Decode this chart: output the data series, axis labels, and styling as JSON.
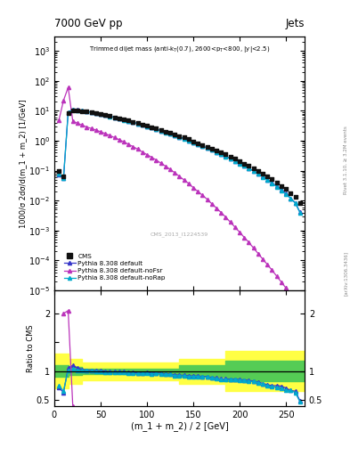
{
  "title_top": "7000 GeV pp",
  "title_right": "Jets",
  "ylabel_main": "1000/σ 2dσ/d(m_1 + m_2) [1/GeV]",
  "ylabel_ratio": "Ratio to CMS",
  "xlabel": "(m_1 + m_2) / 2 [GeV]",
  "cms_label": "CMS_2013_I1224539",
  "rivet_label": "Rivet 3.1.10, ≥ 3.2M events",
  "arxiv_label": "[arXiv:1306.3436]",
  "xlim": [
    0,
    270
  ],
  "ylim_main": [
    1e-05,
    3000.0
  ],
  "ylim_ratio": [
    0.4,
    2.4
  ],
  "cms_x": [
    5,
    10,
    15,
    20,
    25,
    30,
    35,
    40,
    45,
    50,
    55,
    60,
    65,
    70,
    75,
    80,
    85,
    90,
    95,
    100,
    105,
    110,
    115,
    120,
    125,
    130,
    135,
    140,
    145,
    150,
    155,
    160,
    165,
    170,
    175,
    180,
    185,
    190,
    195,
    200,
    205,
    210,
    215,
    220,
    225,
    230,
    235,
    240,
    245,
    250,
    255,
    260,
    265
  ],
  "cms_y": [
    0.1,
    0.065,
    8.5,
    10.5,
    10.2,
    9.7,
    9.2,
    8.7,
    8.2,
    7.65,
    7.1,
    6.6,
    6.05,
    5.55,
    5.05,
    4.65,
    4.25,
    3.85,
    3.45,
    3.1,
    2.82,
    2.52,
    2.22,
    2.0,
    1.8,
    1.62,
    1.42,
    1.27,
    1.11,
    0.96,
    0.83,
    0.72,
    0.63,
    0.55,
    0.47,
    0.41,
    0.345,
    0.295,
    0.245,
    0.205,
    0.173,
    0.143,
    0.117,
    0.097,
    0.08,
    0.065,
    0.052,
    0.04,
    0.031,
    0.024,
    0.018,
    0.013,
    0.0085
  ],
  "py_default_x": [
    5,
    10,
    15,
    20,
    25,
    30,
    35,
    40,
    45,
    50,
    55,
    60,
    65,
    70,
    75,
    80,
    85,
    90,
    95,
    100,
    105,
    110,
    115,
    120,
    125,
    130,
    135,
    140,
    145,
    150,
    155,
    160,
    165,
    170,
    175,
    180,
    185,
    190,
    195,
    200,
    205,
    210,
    215,
    220,
    225,
    230,
    235,
    240,
    245,
    250,
    255,
    260,
    265
  ],
  "py_default_y": [
    0.075,
    0.055,
    8.9,
    11.2,
    10.7,
    10.1,
    9.5,
    8.9,
    8.3,
    7.7,
    7.1,
    6.55,
    6.0,
    5.5,
    5.0,
    4.55,
    4.13,
    3.73,
    3.36,
    3.03,
    2.73,
    2.44,
    2.14,
    1.91,
    1.71,
    1.52,
    1.32,
    1.18,
    1.02,
    0.88,
    0.76,
    0.655,
    0.57,
    0.49,
    0.415,
    0.355,
    0.3,
    0.254,
    0.212,
    0.175,
    0.147,
    0.12,
    0.097,
    0.079,
    0.063,
    0.05,
    0.039,
    0.03,
    0.023,
    0.017,
    0.012,
    0.0085,
    0.0042
  ],
  "py_nofsr_x": [
    5,
    10,
    15,
    20,
    25,
    30,
    35,
    40,
    45,
    50,
    55,
    60,
    65,
    70,
    75,
    80,
    85,
    90,
    95,
    100,
    105,
    110,
    115,
    120,
    125,
    130,
    135,
    140,
    145,
    150,
    155,
    160,
    165,
    170,
    175,
    180,
    185,
    190,
    195,
    200,
    205,
    210,
    215,
    220,
    225,
    230,
    235,
    240,
    245,
    250,
    255,
    260,
    265
  ],
  "py_nofsr_y": [
    4.8,
    22.0,
    60.0,
    4.5,
    3.8,
    3.3,
    2.85,
    2.55,
    2.25,
    1.97,
    1.72,
    1.48,
    1.27,
    1.08,
    0.91,
    0.76,
    0.63,
    0.52,
    0.42,
    0.34,
    0.28,
    0.225,
    0.178,
    0.141,
    0.11,
    0.085,
    0.064,
    0.049,
    0.037,
    0.027,
    0.02,
    0.015,
    0.011,
    0.0078,
    0.0056,
    0.004,
    0.0028,
    0.0019,
    0.0013,
    0.00088,
    0.00059,
    0.0004,
    0.00026,
    0.00017,
    0.00011,
    7.3e-05,
    4.7e-05,
    3e-05,
    1.9e-05,
    1.2e-05,
    8e-06,
    5e-06,
    3.2e-06
  ],
  "py_norap_x": [
    5,
    10,
    15,
    20,
    25,
    30,
    35,
    40,
    45,
    50,
    55,
    60,
    65,
    70,
    75,
    80,
    85,
    90,
    95,
    100,
    105,
    110,
    115,
    120,
    125,
    130,
    135,
    140,
    145,
    150,
    155,
    160,
    165,
    170,
    175,
    180,
    185,
    190,
    195,
    200,
    205,
    210,
    215,
    220,
    225,
    230,
    235,
    240,
    245,
    250,
    255,
    260,
    265
  ],
  "py_norap_y": [
    0.078,
    0.058,
    8.7,
    10.9,
    10.4,
    9.85,
    9.3,
    8.75,
    8.15,
    7.6,
    7.0,
    6.45,
    5.92,
    5.42,
    4.93,
    4.5,
    4.09,
    3.7,
    3.33,
    3.0,
    2.7,
    2.42,
    2.12,
    1.89,
    1.7,
    1.5,
    1.31,
    1.17,
    1.01,
    0.875,
    0.755,
    0.649,
    0.565,
    0.485,
    0.41,
    0.351,
    0.296,
    0.251,
    0.21,
    0.173,
    0.145,
    0.118,
    0.096,
    0.078,
    0.062,
    0.049,
    0.038,
    0.029,
    0.022,
    0.016,
    0.012,
    0.0082,
    0.004
  ],
  "ratio_default_y": [
    0.72,
    0.63,
    1.06,
    1.1,
    1.06,
    1.03,
    1.02,
    1.02,
    1.01,
    1.01,
    1.0,
    0.99,
    0.99,
    0.99,
    0.99,
    0.98,
    0.98,
    0.97,
    0.97,
    0.977,
    0.968,
    0.968,
    0.964,
    0.955,
    0.95,
    0.938,
    0.93,
    0.929,
    0.919,
    0.917,
    0.916,
    0.91,
    0.905,
    0.891,
    0.883,
    0.866,
    0.87,
    0.862,
    0.865,
    0.854,
    0.85,
    0.839,
    0.829,
    0.814,
    0.788,
    0.769,
    0.75,
    0.75,
    0.742,
    0.708,
    0.667,
    0.654,
    0.494
  ],
  "ratio_norap_y": [
    0.75,
    0.66,
    1.02,
    1.04,
    1.02,
    1.015,
    1.009,
    1.006,
    0.994,
    0.993,
    0.986,
    0.977,
    0.979,
    0.978,
    0.975,
    0.97,
    0.962,
    0.961,
    0.965,
    0.968,
    0.957,
    0.96,
    0.955,
    0.945,
    0.944,
    0.926,
    0.922,
    0.921,
    0.909,
    0.911,
    0.91,
    0.902,
    0.897,
    0.882,
    0.872,
    0.857,
    0.858,
    0.852,
    0.857,
    0.844,
    0.839,
    0.825,
    0.821,
    0.804,
    0.775,
    0.754,
    0.731,
    0.725,
    0.71,
    0.667,
    0.667,
    0.631,
    0.471
  ],
  "ratio_nofsr_show": [
    false,
    true,
    true,
    true,
    true,
    false,
    false,
    false,
    false,
    false,
    false,
    false,
    false,
    false,
    false,
    false,
    false,
    false,
    false,
    false,
    false,
    false,
    false,
    false,
    false,
    false,
    false,
    false,
    false,
    false,
    false,
    false,
    false,
    false,
    false,
    false,
    false,
    false,
    false,
    false,
    false,
    false,
    false,
    false,
    false,
    false,
    false,
    false,
    false,
    false,
    false,
    false,
    false
  ],
  "ratio_nofsr_y": [
    0.0,
    2.0,
    2.05,
    0.4,
    0.0,
    0.0,
    0.0,
    0.0,
    0.0,
    0.0,
    0.0,
    0.0,
    0.0,
    0.0,
    0.0,
    0.0,
    0.0,
    0.0,
    0.0,
    0.0,
    0.0,
    0.0,
    0.0,
    0.0,
    0.0,
    0.0,
    0.0,
    0.0,
    0.0,
    0.0,
    0.0,
    0.0,
    0.0,
    0.0,
    0.0,
    0.0,
    0.0,
    0.0,
    0.0,
    0.0,
    0.0,
    0.0,
    0.0,
    0.0,
    0.0,
    0.0,
    0.0,
    0.0,
    0.0,
    0.0,
    0.0,
    0.0,
    0.0
  ],
  "color_cms": "#111111",
  "color_default": "#3636c8",
  "color_nofsr": "#bb33bb",
  "color_norap": "#00aacc",
  "band_x_edges": [
    0,
    5,
    15,
    20,
    30,
    120,
    135,
    170,
    185,
    235,
    270
  ],
  "band_green_lo": [
    0.9,
    0.9,
    0.93,
    0.93,
    0.95,
    0.95,
    0.9,
    0.9,
    0.82,
    0.82,
    0.82
  ],
  "band_green_hi": [
    1.1,
    1.1,
    1.07,
    1.07,
    1.05,
    1.05,
    1.1,
    1.1,
    1.18,
    1.18,
    1.18
  ],
  "band_yellow_lo": [
    0.7,
    0.7,
    0.78,
    0.78,
    0.85,
    0.85,
    0.78,
    0.78,
    0.65,
    0.65,
    0.65
  ],
  "band_yellow_hi": [
    1.3,
    1.3,
    1.22,
    1.22,
    1.15,
    1.15,
    1.22,
    1.22,
    1.35,
    1.35,
    1.35
  ]
}
